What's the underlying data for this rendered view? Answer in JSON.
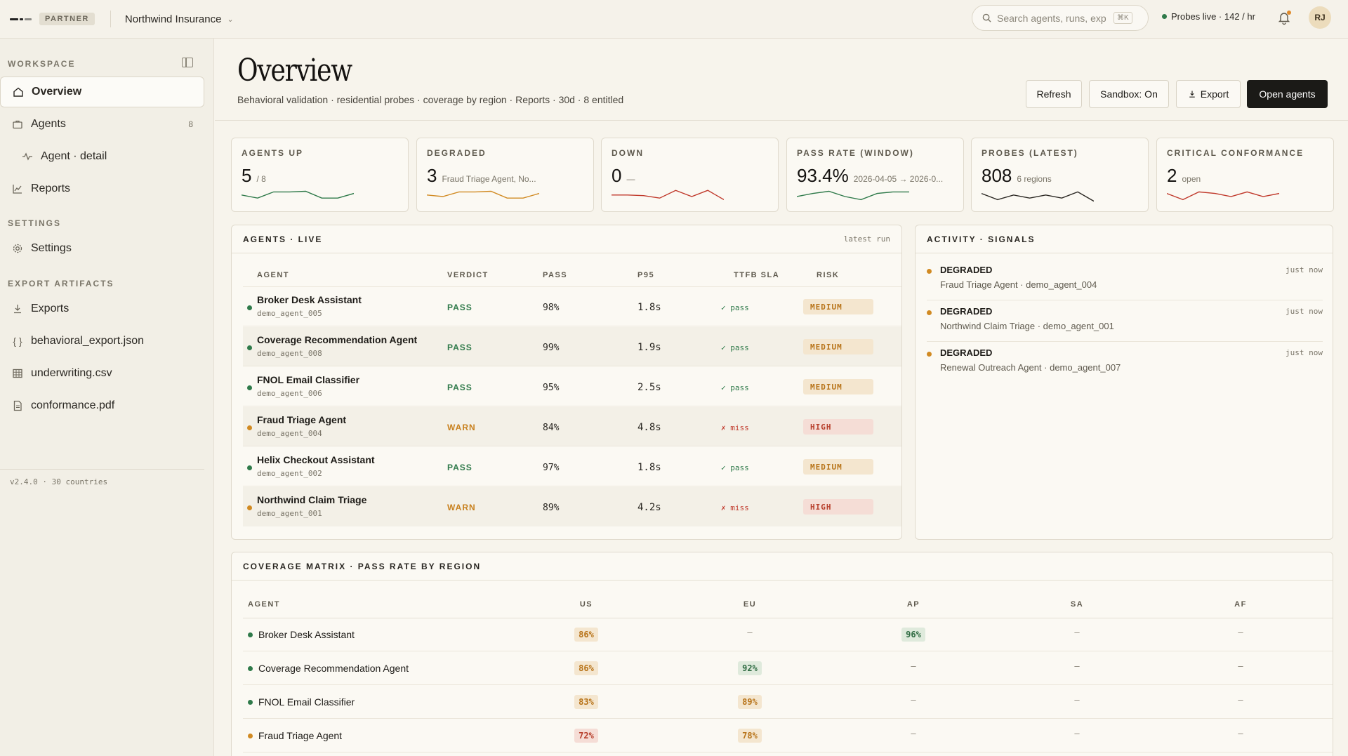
{
  "topbar": {
    "badge": "PARTNER",
    "org": "Northwind Insurance",
    "search_placeholder": "Search agents, runs, exp",
    "search_shortcut": "⌘K",
    "probes_status": "Probes live · 142 / hr",
    "avatar_initials": "RJ"
  },
  "sidebar": {
    "workspace_title": "WORKSPACE",
    "settings_title": "SETTINGS",
    "export_title": "EXPORT ARTIFACTS",
    "items": {
      "overview": "Overview",
      "agents": "Agents",
      "agents_count": "8",
      "agent_detail": "Agent · detail",
      "reports": "Reports",
      "settings": "Settings",
      "exports": "Exports",
      "export_json": "behavioral_export.json",
      "export_csv": "underwriting.csv",
      "export_pdf": "conformance.pdf"
    },
    "version": "v2.4.0 · 30 countries"
  },
  "header": {
    "title": "Overview",
    "subtitle": "Behavioral validation · residential probes · coverage by region · Reports · 30d · 8 entitled",
    "buttons": {
      "refresh": "Refresh",
      "sandbox": "Sandbox: On",
      "export": "Export",
      "open_agents": "Open agents"
    }
  },
  "kpis": [
    {
      "label": "AGENTS UP",
      "value": "5",
      "sub": "/ 8"
    },
    {
      "label": "DEGRADED",
      "value": "3",
      "sub": "Fraud Triage Agent, No..."
    },
    {
      "label": "DOWN",
      "value": "0",
      "sub": "—"
    },
    {
      "label": "PASS RATE (WINDOW)",
      "value": "93.4%",
      "sub": "2026-04-05 → 2026-0..."
    },
    {
      "label": "PROBES (LATEST)",
      "value": "808",
      "sub": "6 regions"
    },
    {
      "label": "CRITICAL CONFORMANCE",
      "value": "2",
      "sub": "open"
    }
  ],
  "sparklines": [
    {
      "color": "#2f7a4a",
      "values": [
        3,
        2,
        4,
        4,
        4.2,
        2,
        2,
        3.5
      ]
    },
    {
      "color": "#d18a22",
      "values": [
        3,
        2.5,
        4,
        4,
        4.2,
        2,
        2,
        3.5
      ]
    },
    {
      "color": "#c0392b",
      "values": [
        3,
        3,
        2.8,
        2,
        4.5,
        2.5,
        4.5,
        1.5
      ]
    },
    {
      "color": "#2f7a4a",
      "values": [
        2.5,
        3.5,
        4.2,
        2.5,
        1.5,
        3.5,
        4,
        4
      ]
    },
    {
      "color": "#2a2722",
      "values": [
        3.5,
        1.5,
        3,
        2,
        3,
        2,
        4,
        1
      ]
    },
    {
      "color": "#c0392b",
      "values": [
        3.5,
        1.5,
        4,
        3.5,
        2.5,
        4,
        2.5,
        3.5
      ]
    }
  ],
  "agents_card": {
    "title": "AGENTS · LIVE",
    "right": "latest run",
    "headers": {
      "agent": "AGENT",
      "verdict": "VERDICT",
      "pass": "PASS",
      "p95": "P95",
      "ttfb": "TTFB SLA",
      "risk": "RISK"
    },
    "rows": [
      {
        "name": "Broker Desk Assistant",
        "id": "demo_agent_005",
        "verdict": "PASS",
        "pass": "98%",
        "p95": "1.8s",
        "sla": "✓ pass",
        "risk": "MEDIUM"
      },
      {
        "name": "Coverage Recommendation Agent",
        "id": "demo_agent_008",
        "verdict": "PASS",
        "pass": "99%",
        "p95": "1.9s",
        "sla": "✓ pass",
        "risk": "MEDIUM"
      },
      {
        "name": "FNOL Email Classifier",
        "id": "demo_agent_006",
        "verdict": "PASS",
        "pass": "95%",
        "p95": "2.5s",
        "sla": "✓ pass",
        "risk": "MEDIUM"
      },
      {
        "name": "Fraud Triage Agent",
        "id": "demo_agent_004",
        "verdict": "WARN",
        "pass": "84%",
        "p95": "4.8s",
        "sla": "✗ miss",
        "risk": "HIGH"
      },
      {
        "name": "Helix Checkout Assistant",
        "id": "demo_agent_002",
        "verdict": "PASS",
        "pass": "97%",
        "p95": "1.8s",
        "sla": "✓ pass",
        "risk": "MEDIUM"
      },
      {
        "name": "Northwind Claim Triage",
        "id": "demo_agent_001",
        "verdict": "WARN",
        "pass": "89%",
        "p95": "4.2s",
        "sla": "✗ miss",
        "risk": "HIGH"
      }
    ]
  },
  "activity": {
    "title": "ACTIVITY · SIGNALS",
    "items": [
      {
        "title": "DEGRADED",
        "detail": "Fraud Triage Agent · demo_agent_004",
        "time": "just now"
      },
      {
        "title": "DEGRADED",
        "detail": "Northwind Claim Triage · demo_agent_001",
        "time": "just now"
      },
      {
        "title": "DEGRADED",
        "detail": "Renewal Outreach Agent · demo_agent_007",
        "time": "just now"
      }
    ]
  },
  "matrix": {
    "title": "COVERAGE MATRIX · PASS RATE BY REGION",
    "headers": {
      "agent": "AGENT",
      "us": "US",
      "eu": "EU",
      "ap": "AP",
      "sa": "SA",
      "af": "AF"
    },
    "rows": [
      {
        "name": "Broker Desk Assistant",
        "us": "86%",
        "eu": "–",
        "ap": "96%",
        "sa": "–",
        "af": "–"
      },
      {
        "name": "Coverage Recommendation Agent",
        "us": "86%",
        "eu": "92%",
        "ap": "–",
        "sa": "–",
        "af": "–"
      },
      {
        "name": "FNOL Email Classifier",
        "us": "83%",
        "eu": "89%",
        "ap": "–",
        "sa": "–",
        "af": "–"
      },
      {
        "name": "Fraud Triage Agent",
        "us": "72%",
        "eu": "78%",
        "ap": "–",
        "sa": "–",
        "af": "–"
      }
    ]
  },
  "colors": {
    "pass": "#2f7a4a",
    "warn": "#d18a22",
    "fail": "#c0392b",
    "primary_button": "#1b1a17"
  }
}
